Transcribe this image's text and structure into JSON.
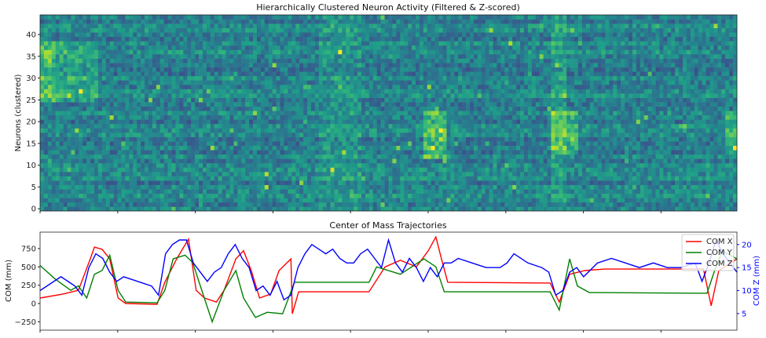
{
  "chart_data": [
    {
      "type": "heatmap",
      "title": "Hierarchically Clustered Neuron Activity (Filtered & Z-scored)",
      "ylabel": "Neurons (clustered)",
      "xlabel": "",
      "rows": 45,
      "colormap": "viridis",
      "ylim": [
        0,
        44
      ],
      "yticks": [
        "0",
        "5",
        "10",
        "15",
        "20",
        "25",
        "30",
        "35",
        "40"
      ],
      "xtick_count": 9,
      "xtick_labels_shown": false,
      "grid": false
    },
    {
      "type": "line",
      "title": "Center of Mass Trajectories",
      "ylabel": "COM (mm)",
      "ylabel_right": "COM Z (mm)",
      "xlim": [
        0,
        100
      ],
      "ylim": [
        -364,
        975
      ],
      "ylim_right": [
        1.4,
        22.7
      ],
      "yticks": [
        "−250",
        "0",
        "250",
        "500",
        "750"
      ],
      "yticks_right": [
        "5",
        "10",
        "15",
        "20"
      ],
      "xtick_count": 9,
      "xtick_labels_shown": false,
      "legend": "top-right",
      "grid": false,
      "series": [
        {
          "name": "COM X",
          "color": "#ff0000",
          "axis": "left",
          "x": [
            0,
            3.3,
            5.5,
            7.2,
            7.8,
            8.9,
            10,
            11.2,
            12.3,
            16.8,
            17.9,
            19.6,
            21.3,
            22.4,
            23.6,
            25.3,
            26.4,
            28.1,
            29.2,
            30.3,
            31.5,
            33.1,
            34.3,
            36,
            36.2,
            37.1,
            47.2,
            49.5,
            51.7,
            54,
            55.7,
            56.8,
            57.6,
            58.5,
            73.2,
            74.5,
            76,
            78.2,
            81,
            95.2,
            96.3,
            97.4,
            100
          ],
          "values": [
            75,
            130,
            180,
            610,
            770,
            740,
            610,
            75,
            0,
            -10,
            290,
            610,
            880,
            180,
            75,
            20,
            180,
            610,
            720,
            450,
            75,
            130,
            450,
            610,
            -140,
            160,
            160,
            500,
            590,
            500,
            720,
            910,
            610,
            290,
            280,
            20,
            400,
            450,
            470,
            470,
            -30,
            450,
            610
          ]
        },
        {
          "name": "COM Y",
          "color": "#008000",
          "axis": "left",
          "x": [
            0,
            2.1,
            4.4,
            5.5,
            6.7,
            7.8,
            8.9,
            10,
            11.2,
            12.3,
            16.8,
            17.9,
            19.1,
            20.8,
            21.9,
            23,
            24.7,
            26.4,
            28.1,
            29.2,
            30.9,
            32.6,
            34.8,
            36.5,
            47.2,
            48.3,
            51.7,
            55.1,
            56.8,
            58,
            66.4,
            73.2,
            74.5,
            76,
            77.1,
            78.8,
            94.6,
            95.7,
            96.8,
            97.9,
            100
          ],
          "values": [
            520,
            340,
            180,
            240,
            75,
            400,
            450,
            660,
            180,
            20,
            10,
            180,
            610,
            660,
            560,
            240,
            -250,
            180,
            450,
            75,
            -190,
            -120,
            -140,
            290,
            290,
            500,
            400,
            610,
            500,
            160,
            160,
            160,
            -90,
            610,
            240,
            150,
            140,
            140,
            450,
            720,
            610
          ]
        },
        {
          "name": "COM Z",
          "color": "#0000ff",
          "axis": "right",
          "x": [
            0,
            3,
            5,
            6,
            7,
            8,
            9,
            10,
            11,
            12,
            14,
            16,
            17,
            18,
            19,
            20,
            21,
            22,
            23,
            24,
            25,
            26,
            27,
            28,
            29,
            30,
            31,
            32,
            33,
            34,
            35,
            36,
            37,
            38,
            39,
            40,
            41,
            42,
            43,
            44,
            45,
            46,
            47,
            48,
            49,
            50,
            51,
            52,
            53,
            54,
            55,
            56,
            57,
            58,
            59,
            60,
            62,
            64,
            66,
            67,
            68,
            70,
            72,
            73,
            74,
            75,
            76,
            77,
            78,
            80,
            82,
            84,
            86,
            88,
            90,
            92,
            94,
            95,
            96,
            97,
            98,
            99,
            100
          ],
          "values": [
            10,
            13,
            11,
            9,
            15,
            18,
            17,
            14,
            12,
            13,
            12,
            11,
            9,
            18,
            20,
            21,
            21,
            16,
            14,
            12,
            14,
            15,
            18,
            20,
            17,
            15,
            10,
            11,
            9,
            12,
            8,
            9,
            15,
            18,
            20,
            19,
            18,
            19,
            17,
            16,
            16,
            18,
            19,
            17,
            15,
            21,
            16,
            14,
            17,
            15,
            12,
            15,
            13,
            16,
            16,
            17,
            16,
            15,
            15,
            16,
            18,
            16,
            15,
            14,
            9,
            10,
            14,
            15,
            13,
            16,
            17,
            16,
            15,
            16,
            15,
            15,
            16,
            12,
            16,
            21,
            18,
            16,
            14
          ]
        }
      ]
    }
  ]
}
